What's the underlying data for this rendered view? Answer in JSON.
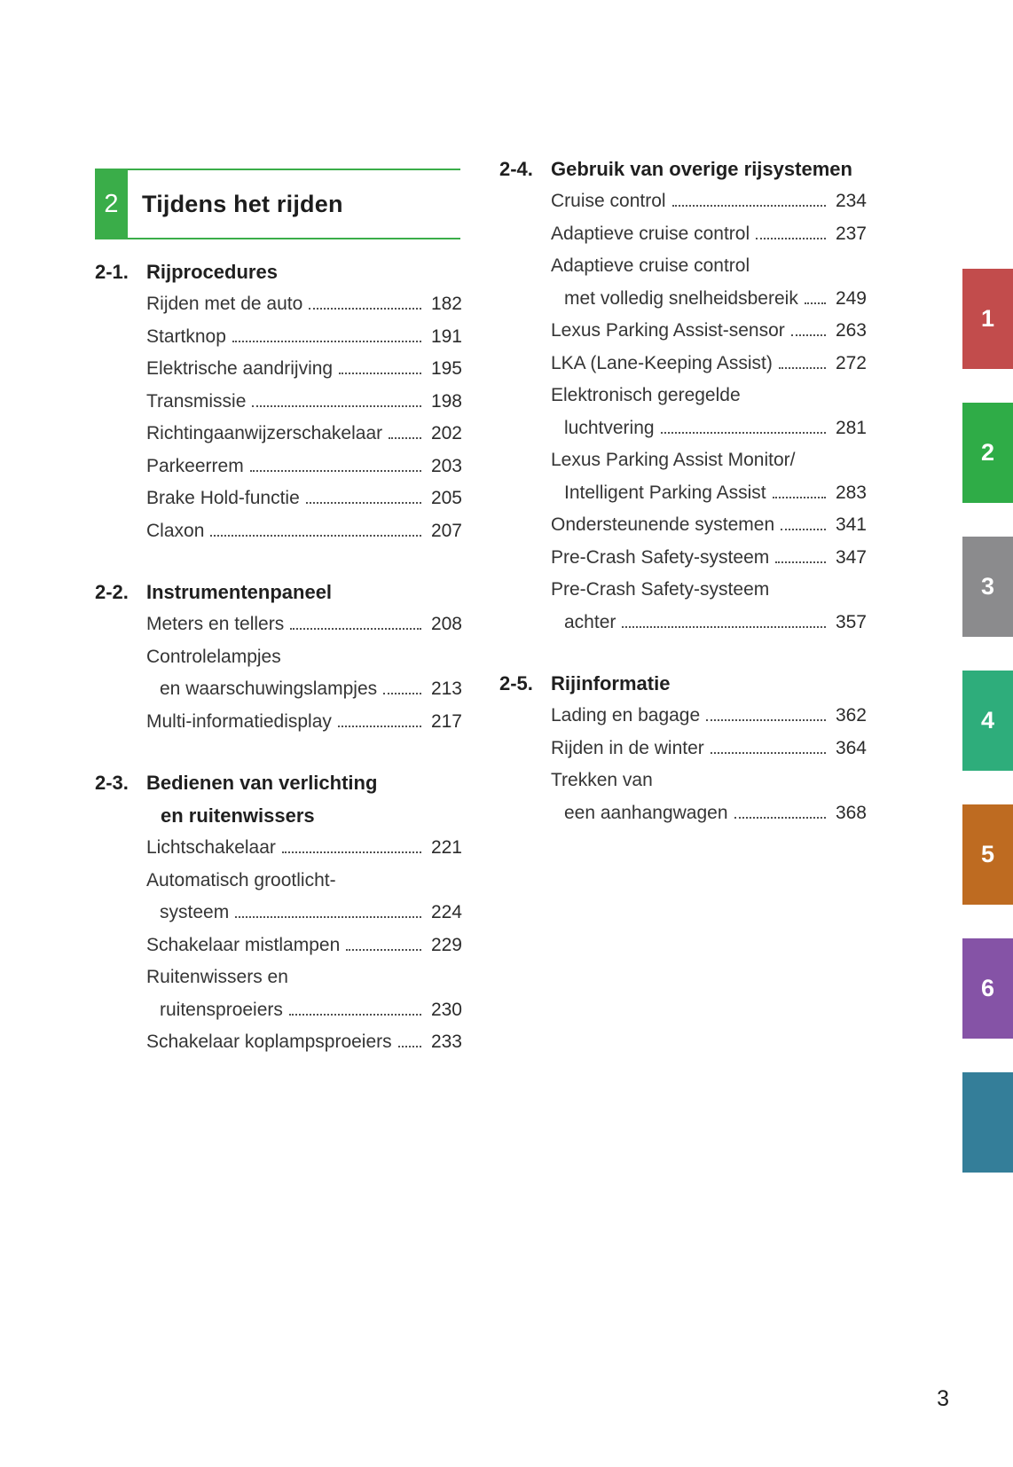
{
  "page": {
    "number": "3"
  },
  "chapter": {
    "number": "2",
    "title": "Tijdens het rijden",
    "accent_color": "#3aad49"
  },
  "columns": [
    {
      "sections": [
        {
          "id": "2-1.",
          "title_lines": [
            "Rijprocedures"
          ],
          "items": [
            {
              "lines": [
                "Rijden met de auto"
              ],
              "page": "182"
            },
            {
              "lines": [
                "Startknop"
              ],
              "page": "191"
            },
            {
              "lines": [
                "Elektrische aandrijving"
              ],
              "page": "195"
            },
            {
              "lines": [
                "Transmissie"
              ],
              "page": "198"
            },
            {
              "lines": [
                "Richtingaanwijzerschakelaar"
              ],
              "page": "202"
            },
            {
              "lines": [
                "Parkeerrem"
              ],
              "page": "203"
            },
            {
              "lines": [
                "Brake Hold-functie"
              ],
              "page": "205"
            },
            {
              "lines": [
                "Claxon"
              ],
              "page": "207"
            }
          ]
        },
        {
          "id": "2-2.",
          "title_lines": [
            "Instrumentenpaneel"
          ],
          "items": [
            {
              "lines": [
                "Meters en tellers"
              ],
              "page": "208"
            },
            {
              "lines": [
                "Controlelampjes",
                "en waarschuwingslampjes"
              ],
              "page": "213"
            },
            {
              "lines": [
                "Multi-informatiedisplay"
              ],
              "page": "217"
            }
          ]
        },
        {
          "id": "2-3.",
          "title_lines": [
            "Bedienen van verlichting",
            "en ruitenwissers"
          ],
          "items": [
            {
              "lines": [
                "Lichtschakelaar"
              ],
              "page": "221"
            },
            {
              "lines": [
                "Automatisch grootlicht-",
                "systeem"
              ],
              "page": "224"
            },
            {
              "lines": [
                "Schakelaar mistlampen"
              ],
              "page": "229"
            },
            {
              "lines": [
                "Ruitenwissers en",
                "ruitensproeiers"
              ],
              "page": "230"
            },
            {
              "lines": [
                "Schakelaar koplampsproeiers"
              ],
              "page": "233"
            }
          ]
        }
      ]
    },
    {
      "sections": [
        {
          "id": "2-4.",
          "title_lines": [
            "Gebruik van overige rijsystemen"
          ],
          "items": [
            {
              "lines": [
                "Cruise control"
              ],
              "page": "234"
            },
            {
              "lines": [
                "Adaptieve cruise control"
              ],
              "page": "237"
            },
            {
              "lines": [
                "Adaptieve cruise control",
                "met volledig snelheidsbereik"
              ],
              "page": "249"
            },
            {
              "lines": [
                "Lexus Parking Assist-sensor"
              ],
              "page": "263"
            },
            {
              "lines": [
                "LKA (Lane-Keeping Assist)"
              ],
              "page": "272"
            },
            {
              "lines": [
                "Elektronisch geregelde",
                "luchtvering"
              ],
              "page": "281"
            },
            {
              "lines": [
                "Lexus Parking Assist Monitor/",
                "Intelligent Parking Assist"
              ],
              "page": "283"
            },
            {
              "lines": [
                "Ondersteunende systemen"
              ],
              "page": "341"
            },
            {
              "lines": [
                "Pre-Crash Safety-systeem"
              ],
              "page": "347"
            },
            {
              "lines": [
                "Pre-Crash Safety-systeem",
                "achter"
              ],
              "page": "357"
            }
          ]
        },
        {
          "id": "2-5.",
          "title_lines": [
            "Rijinformatie"
          ],
          "items": [
            {
              "lines": [
                "Lading en bagage"
              ],
              "page": "362"
            },
            {
              "lines": [
                "Rijden in de winter"
              ],
              "page": "364"
            },
            {
              "lines": [
                "Trekken van",
                "een aanhangwagen"
              ],
              "page": "368"
            }
          ]
        }
      ]
    }
  ],
  "side_tabs": [
    {
      "label": "1",
      "color": "#c24c4c"
    },
    {
      "label": "2",
      "color": "#2fac47"
    },
    {
      "label": "3",
      "color": "#8b8b8d"
    },
    {
      "label": "4",
      "color": "#2ead7b"
    },
    {
      "label": "5",
      "color": "#be6b21"
    },
    {
      "label": "6",
      "color": "#8553a6"
    },
    {
      "label": "",
      "color": "#347e99"
    }
  ]
}
